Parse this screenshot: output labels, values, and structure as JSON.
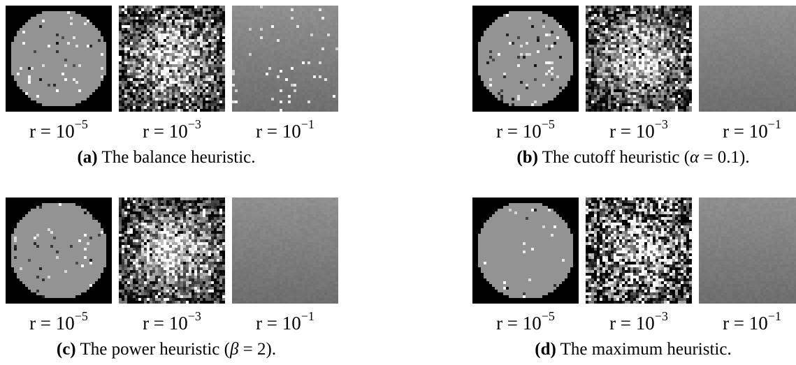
{
  "panels": [
    {
      "letter": "(a)",
      "text_before": "The balance heuristic.",
      "symbol": "",
      "text_after": "",
      "thumbs": [
        {
          "r_base": "r = 10",
          "r_exp": "−5",
          "kind": "disk",
          "noise": 0.06
        },
        {
          "r_base": "r = 10",
          "r_exp": "−3",
          "kind": "blob",
          "noise": 0.55
        },
        {
          "r_base": "r = 10",
          "r_exp": "−1",
          "kind": "flat",
          "noise": 0.03
        }
      ]
    },
    {
      "letter": "(b)",
      "text_before": "The cutoff heuristic (",
      "symbol": "α",
      "text_after": " = 0.1).",
      "thumbs": [
        {
          "r_base": "r = 10",
          "r_exp": "−5",
          "kind": "disk",
          "noise": 0.05
        },
        {
          "r_base": "r = 10",
          "r_exp": "−3",
          "kind": "blob",
          "noise": 0.5
        },
        {
          "r_base": "r = 10",
          "r_exp": "−1",
          "kind": "flat",
          "noise": 0.0
        }
      ]
    },
    {
      "letter": "(c)",
      "text_before": "The power heuristic (",
      "symbol": "β",
      "text_after": " = 2).",
      "thumbs": [
        {
          "r_base": "r = 10",
          "r_exp": "−5",
          "kind": "disk",
          "noise": 0.04
        },
        {
          "r_base": "r = 10",
          "r_exp": "−3",
          "kind": "blob",
          "noise": 0.5
        },
        {
          "r_base": "r = 10",
          "r_exp": "−1",
          "kind": "flat",
          "noise": 0.0
        }
      ]
    },
    {
      "letter": "(d)",
      "text_before": "The maximum heuristic.",
      "symbol": "",
      "text_after": "",
      "thumbs": [
        {
          "r_base": "r = 10",
          "r_exp": "−5",
          "kind": "disk",
          "noise": 0.02
        },
        {
          "r_base": "r = 10",
          "r_exp": "−3",
          "kind": "blob",
          "noise": 0.75
        },
        {
          "r_base": "r = 10",
          "r_exp": "−1",
          "kind": "flat",
          "noise": 0.0
        }
      ]
    }
  ],
  "colors": {
    "background": "#000000",
    "disk": "#939393",
    "flat_top": "#8f8f8f",
    "flat_bottom": "#6e6e6e"
  }
}
